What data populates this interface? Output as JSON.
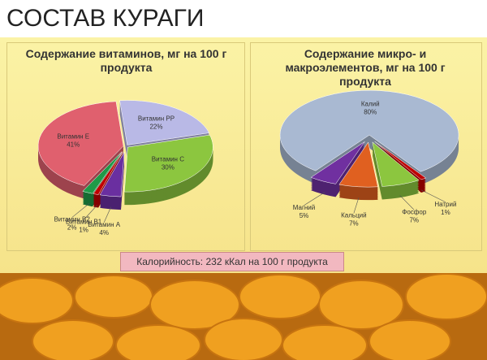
{
  "title": "СОСТАВ КУРАГИ",
  "chart_data": [
    {
      "type": "pie",
      "title": "Содержание витаминов, мг на 100 г продукта",
      "categories": [
        "Витамин PP",
        "Витамин С",
        "Витамин А",
        "Витамин В1",
        "Витамин В2",
        "Витамин Е"
      ],
      "values": [
        22,
        30,
        4,
        1,
        2,
        41
      ],
      "value_labels": [
        "22%",
        "30%",
        "4%",
        "1%",
        "2%",
        "41%"
      ],
      "colors": [
        "#b9b9e6",
        "#8cc63f",
        "#6a2fa0",
        "#c00000",
        "#1f9a48",
        "#e0606e"
      ]
    },
    {
      "type": "pie",
      "title": "Содержание микро- и макроэлементов, мг на 100 г продукта",
      "categories": [
        "Натрий",
        "Фосфор",
        "Кальций",
        "Магний",
        "Калий"
      ],
      "values": [
        1,
        7,
        7,
        5,
        80
      ],
      "value_labels": [
        "1%",
        "7%",
        "7%",
        "5%",
        "80%"
      ],
      "colors": [
        "#c00000",
        "#8cc63f",
        "#e06020",
        "#7030a0",
        "#a9b9d2"
      ]
    }
  ],
  "note": "Калорийность: 232 кКал на 100 г продукта"
}
